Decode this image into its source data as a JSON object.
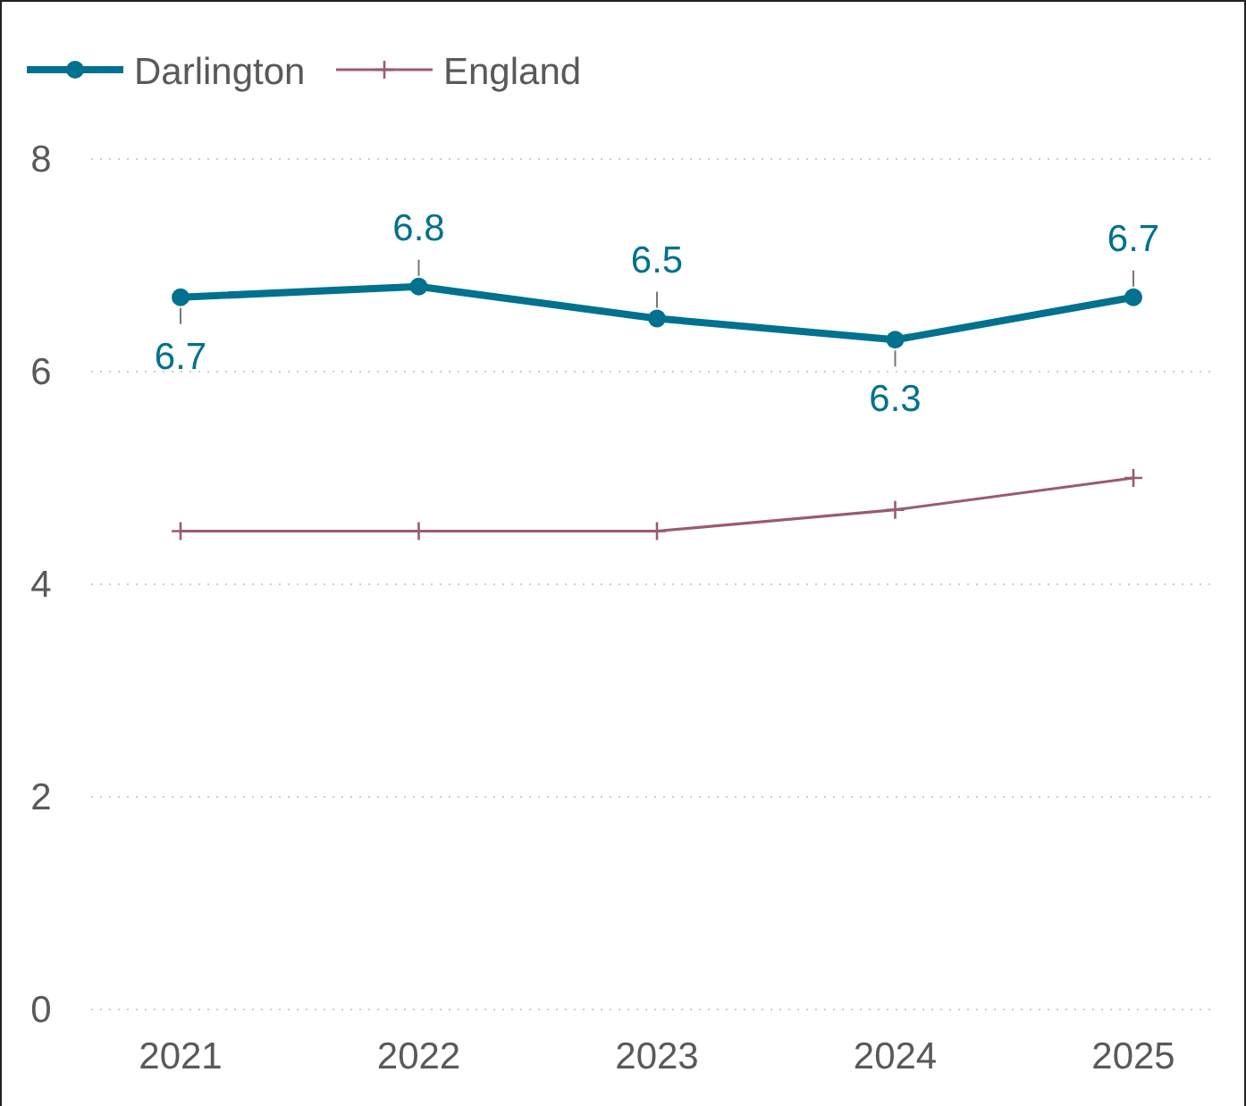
{
  "chart_data": {
    "type": "line",
    "categories": [
      "2021",
      "2022",
      "2023",
      "2024",
      "2025"
    ],
    "series": [
      {
        "name": "Darlington",
        "color": "#00718f",
        "values": [
          6.7,
          6.8,
          6.5,
          6.3,
          6.7
        ],
        "value_labels": [
          "6.7",
          "6.8",
          "6.5",
          "6.3",
          "6.7"
        ],
        "marker": "circle"
      },
      {
        "name": "England",
        "color": "#9b5a74",
        "values": [
          4.5,
          4.5,
          4.5,
          4.7,
          5.0
        ],
        "marker": "cross"
      }
    ],
    "ylim": [
      0,
      8
    ],
    "yticks": [
      0,
      2,
      4,
      6,
      8
    ],
    "grid": "y",
    "legend": "top left"
  }
}
